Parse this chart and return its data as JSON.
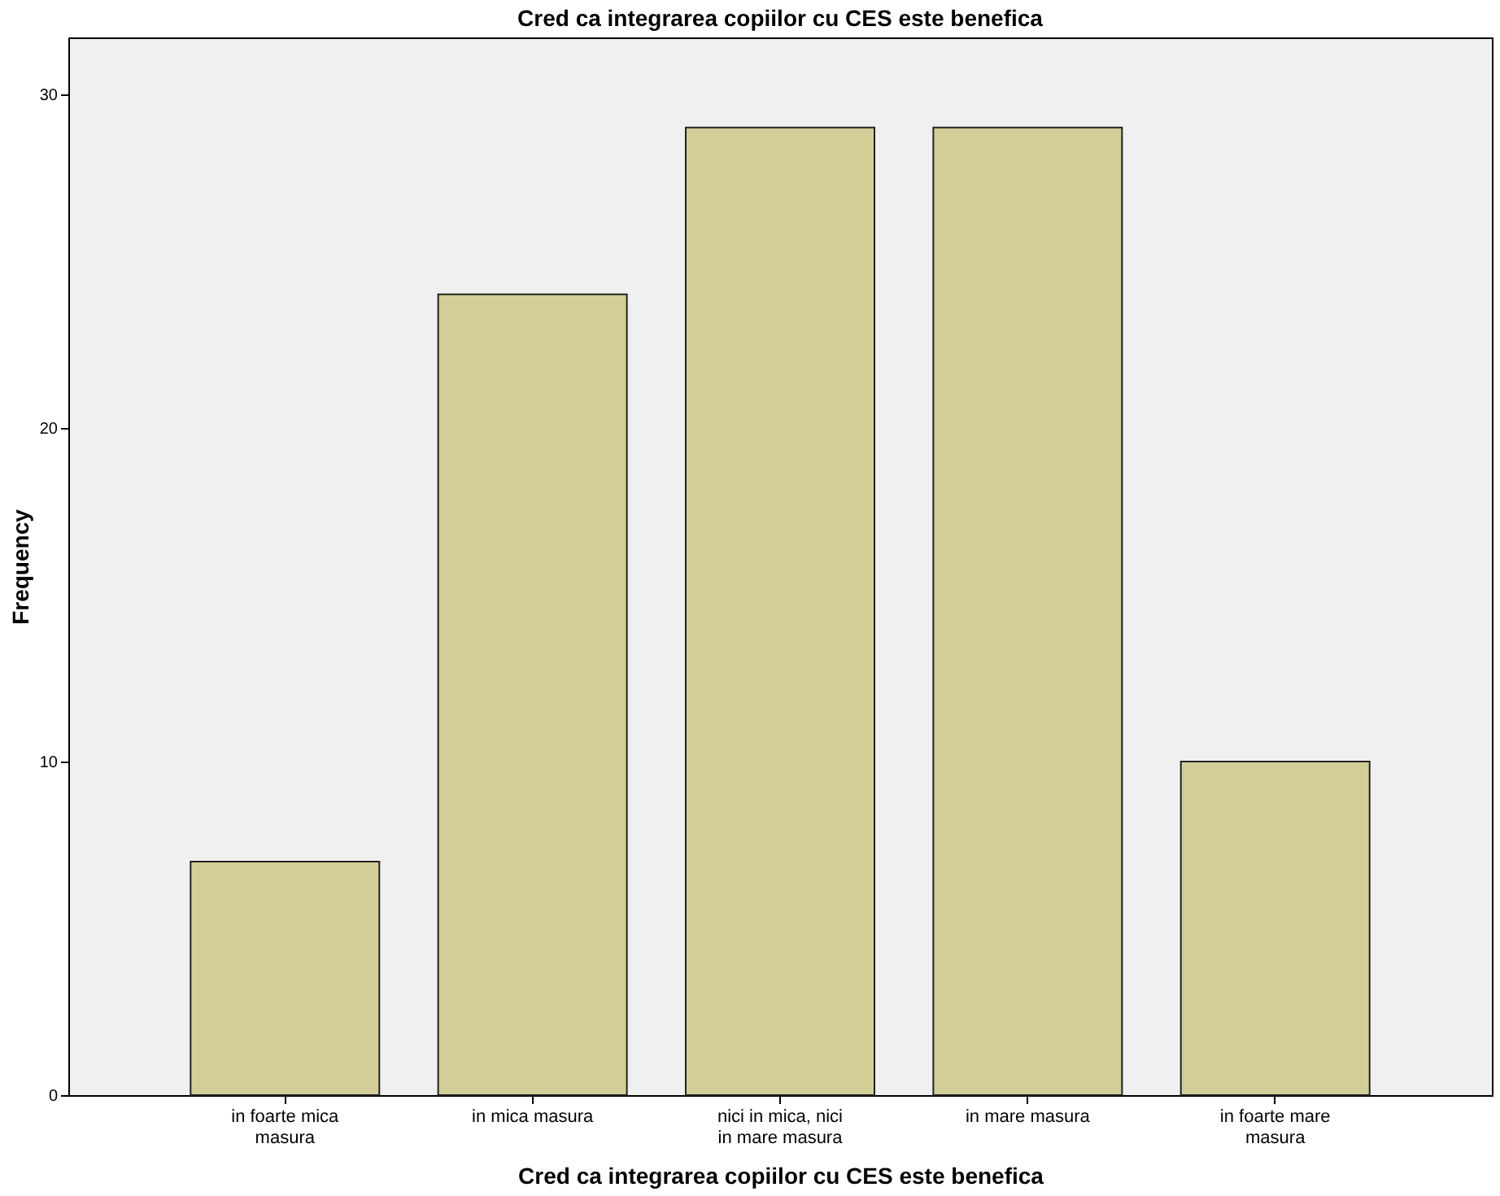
{
  "chart_data": {
    "type": "bar",
    "title": "Cred ca integrarea copiilor cu CES este benefica",
    "xlabel": "Cred ca integrarea copiilor cu CES este benefica",
    "ylabel": "Frequency",
    "categories": [
      "in foarte mica masura",
      "in mica masura",
      "nici in mica, nici in mare masura",
      "in mare masura",
      "in foarte mare masura"
    ],
    "values": [
      7,
      24,
      29,
      29,
      10
    ],
    "color": "#d3ce97",
    "ylim": [
      0,
      31.7
    ],
    "yticks": [
      0,
      10,
      20,
      30
    ],
    "grid": false,
    "legend": false
  }
}
